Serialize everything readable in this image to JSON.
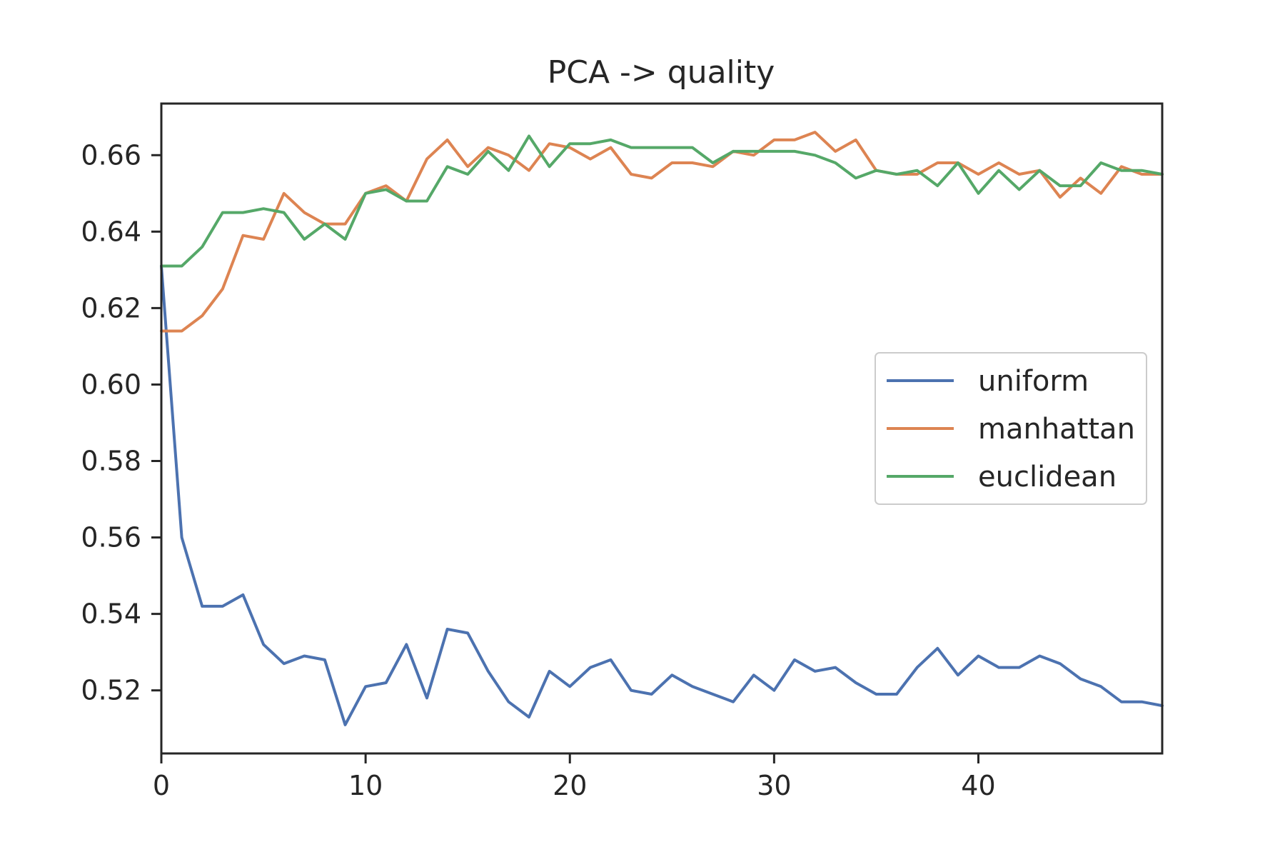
{
  "chart_data": {
    "type": "line",
    "title": "PCA -> quality",
    "xlabel": "",
    "ylabel": "",
    "xlim": [
      0,
      49
    ],
    "ylim": [
      0.5035,
      0.6735
    ],
    "x_ticks": [
      0,
      10,
      20,
      30,
      40
    ],
    "y_ticks": [
      0.52,
      0.54,
      0.56,
      0.58,
      0.6,
      0.62,
      0.64,
      0.66
    ],
    "y_tick_labels": [
      "0.52",
      "0.54",
      "0.56",
      "0.58",
      "0.60",
      "0.62",
      "0.64",
      "0.66"
    ],
    "grid": false,
    "legend": "center-right",
    "x": [
      0,
      1,
      2,
      3,
      4,
      5,
      6,
      7,
      8,
      9,
      10,
      11,
      12,
      13,
      14,
      15,
      16,
      17,
      18,
      19,
      20,
      21,
      22,
      23,
      24,
      25,
      26,
      27,
      28,
      29,
      30,
      31,
      32,
      33,
      34,
      35,
      36,
      37,
      38,
      39,
      40,
      41,
      42,
      43,
      44,
      45,
      46,
      47,
      48,
      49
    ],
    "series": [
      {
        "name": "uniform",
        "color": "#4c72b0",
        "values": [
          0.631,
          0.56,
          0.542,
          0.542,
          0.545,
          0.532,
          0.527,
          0.529,
          0.528,
          0.511,
          0.521,
          0.522,
          0.532,
          0.518,
          0.536,
          0.535,
          0.525,
          0.517,
          0.513,
          0.525,
          0.521,
          0.526,
          0.528,
          0.52,
          0.519,
          0.524,
          0.521,
          0.519,
          0.517,
          0.524,
          0.52,
          0.528,
          0.525,
          0.526,
          0.522,
          0.519,
          0.519,
          0.526,
          0.531,
          0.524,
          0.529,
          0.526,
          0.526,
          0.529,
          0.527,
          0.523,
          0.521,
          0.517,
          0.517,
          0.516
        ]
      },
      {
        "name": "manhattan",
        "color": "#dd8452",
        "values": [
          0.614,
          0.614,
          0.618,
          0.625,
          0.639,
          0.638,
          0.65,
          0.645,
          0.642,
          0.642,
          0.65,
          0.652,
          0.648,
          0.659,
          0.664,
          0.657,
          0.662,
          0.66,
          0.656,
          0.663,
          0.662,
          0.659,
          0.662,
          0.655,
          0.654,
          0.658,
          0.658,
          0.657,
          0.661,
          0.66,
          0.664,
          0.664,
          0.666,
          0.661,
          0.664,
          0.656,
          0.655,
          0.655,
          0.658,
          0.658,
          0.655,
          0.658,
          0.655,
          0.656,
          0.649,
          0.654,
          0.65,
          0.657,
          0.655,
          0.655
        ]
      },
      {
        "name": "euclidean",
        "color": "#55a868",
        "values": [
          0.631,
          0.631,
          0.636,
          0.645,
          0.645,
          0.646,
          0.645,
          0.638,
          0.642,
          0.638,
          0.65,
          0.651,
          0.648,
          0.648,
          0.657,
          0.655,
          0.661,
          0.656,
          0.665,
          0.657,
          0.663,
          0.663,
          0.664,
          0.662,
          0.662,
          0.662,
          0.662,
          0.658,
          0.661,
          0.661,
          0.661,
          0.661,
          0.66,
          0.658,
          0.654,
          0.656,
          0.655,
          0.656,
          0.652,
          0.658,
          0.65,
          0.656,
          0.651,
          0.656,
          0.652,
          0.652,
          0.658,
          0.656,
          0.656,
          0.655
        ]
      }
    ]
  }
}
